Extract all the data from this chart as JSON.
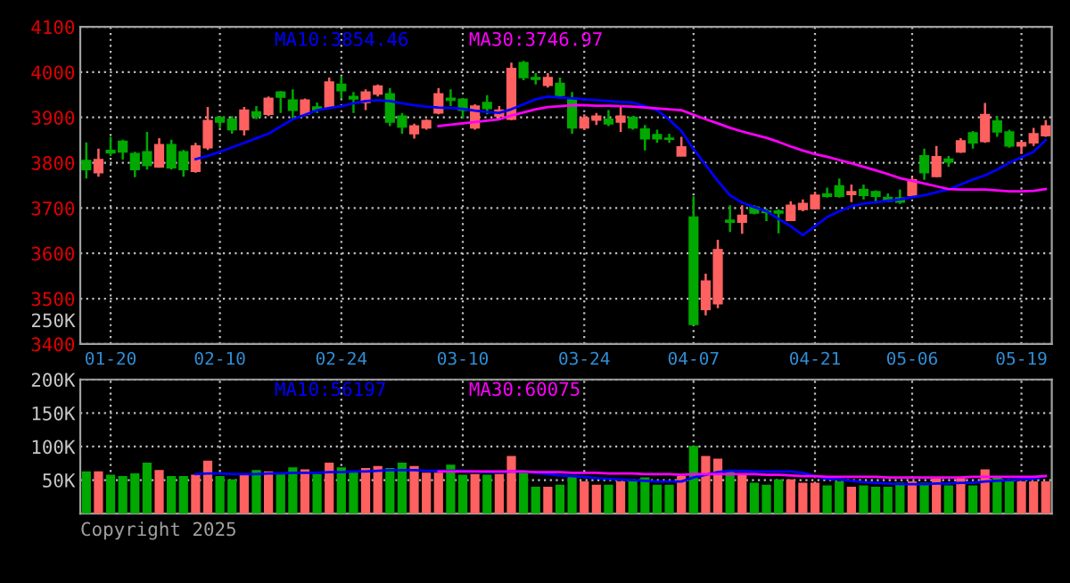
{
  "chart_data": [
    {
      "type": "candlestick",
      "categories": [
        null,
        null,
        "01-20",
        null,
        null,
        null,
        null,
        null,
        null,
        null,
        null,
        "02-10",
        null,
        null,
        null,
        null,
        null,
        null,
        null,
        null,
        null,
        "02-24",
        null,
        null,
        null,
        null,
        null,
        null,
        null,
        null,
        null,
        "03-10",
        null,
        null,
        null,
        null,
        null,
        null,
        null,
        null,
        null,
        "03-24",
        null,
        null,
        null,
        null,
        null,
        null,
        null,
        null,
        "04-07",
        null,
        null,
        null,
        null,
        null,
        null,
        null,
        null,
        null,
        "04-21",
        null,
        null,
        null,
        null,
        null,
        null,
        null,
        "05-06",
        null,
        null,
        null,
        null,
        null,
        null,
        null,
        null,
        "05-19",
        null,
        null
      ],
      "ohlc": [
        [
          3805,
          3845,
          3765,
          3785
        ],
        [
          3778,
          3831,
          3769,
          3807
        ],
        [
          3827,
          3857,
          3815,
          3822
        ],
        [
          3847,
          3851,
          3807,
          3824
        ],
        [
          3820,
          3824,
          3768,
          3785
        ],
        [
          3824,
          3868,
          3785,
          3794
        ],
        [
          3791,
          3854,
          3789,
          3840
        ],
        [
          3840,
          3851,
          3785,
          3789
        ],
        [
          3824,
          3828,
          3769,
          3785
        ],
        [
          3781,
          3844,
          3778,
          3837
        ],
        [
          3833,
          3923,
          3828,
          3893
        ],
        [
          3900,
          3903,
          3877,
          3890
        ],
        [
          3896,
          3903,
          3864,
          3873
        ],
        [
          3873,
          3923,
          3860,
          3916
        ],
        [
          3912,
          3925,
          3896,
          3902
        ],
        [
          3907,
          3946,
          3903,
          3942
        ],
        [
          3956,
          3958,
          3910,
          3945
        ],
        [
          3938,
          3962,
          3896,
          3916
        ],
        [
          3907,
          3942,
          3903,
          3938
        ],
        [
          3923,
          3933,
          3910,
          3917
        ],
        [
          3923,
          3988,
          3919,
          3978
        ],
        [
          3973,
          3991,
          3942,
          3959
        ],
        [
          3946,
          3956,
          3910,
          3941
        ],
        [
          3933,
          3962,
          3916,
          3956
        ],
        [
          3952,
          3973,
          3946,
          3969
        ],
        [
          3952,
          3965,
          3881,
          3890
        ],
        [
          3903,
          3910,
          3864,
          3879
        ],
        [
          3864,
          3886,
          3853,
          3881
        ],
        [
          3877,
          3896,
          3873,
          3893
        ],
        [
          3910,
          3965,
          3907,
          3952
        ],
        [
          3942,
          3962,
          3925,
          3938
        ],
        [
          3940,
          3942,
          3899,
          3916
        ],
        [
          3877,
          3929,
          3873,
          3925
        ],
        [
          3933,
          3949,
          3907,
          3920
        ],
        [
          3903,
          3925,
          3896,
          3916
        ],
        [
          3896,
          4021,
          3894,
          4008
        ],
        [
          4021,
          4025,
          3982,
          3988
        ],
        [
          3988,
          3998,
          3973,
          3984
        ],
        [
          3971,
          3998,
          3966,
          3988
        ],
        [
          3975,
          3988,
          3942,
          3949
        ],
        [
          3942,
          3956,
          3864,
          3877
        ],
        [
          3877,
          3907,
          3873,
          3899
        ],
        [
          3894,
          3910,
          3883,
          3903
        ],
        [
          3896,
          3916,
          3881,
          3886
        ],
        [
          3890,
          3923,
          3868,
          3903
        ],
        [
          3900,
          3903,
          3873,
          3877
        ],
        [
          3874,
          3883,
          3827,
          3853
        ],
        [
          3862,
          3873,
          3844,
          3853
        ],
        [
          3854,
          3864,
          3844,
          3852
        ],
        [
          3815,
          3857,
          3815,
          3835
        ],
        [
          3680,
          3726,
          3443,
          3443
        ],
        [
          3476,
          3555,
          3463,
          3539
        ],
        [
          3489,
          3630,
          3479,
          3608
        ],
        [
          3673,
          3706,
          3647,
          3669
        ],
        [
          3669,
          3706,
          3643,
          3684
        ],
        [
          3702,
          3706,
          3686,
          3689
        ],
        [
          3693,
          3699,
          3671,
          3690
        ],
        [
          3693,
          3697,
          3644,
          3689
        ],
        [
          3673,
          3715,
          3671,
          3706
        ],
        [
          3697,
          3719,
          3693,
          3710
        ],
        [
          3699,
          3736,
          3697,
          3728
        ],
        [
          3731,
          3745,
          3723,
          3726
        ],
        [
          3749,
          3765,
          3723,
          3726
        ],
        [
          3730,
          3752,
          3713,
          3736
        ],
        [
          3741,
          3752,
          3719,
          3728
        ],
        [
          3736,
          3739,
          3710,
          3726
        ],
        [
          3723,
          3732,
          3713,
          3715
        ],
        [
          3722,
          3741,
          3709,
          3713
        ],
        [
          3728,
          3768,
          3726,
          3762
        ],
        [
          3815,
          3831,
          3762,
          3778
        ],
        [
          3770,
          3837,
          3768,
          3813
        ],
        [
          3808,
          3815,
          3791,
          3802
        ],
        [
          3824,
          3854,
          3822,
          3848
        ],
        [
          3866,
          3870,
          3831,
          3844
        ],
        [
          3847,
          3932,
          3844,
          3906
        ],
        [
          3892,
          3903,
          3857,
          3868
        ],
        [
          3868,
          3873,
          3833,
          3837
        ],
        [
          3837,
          3847,
          3820,
          3844
        ],
        [
          3844,
          3877,
          3837,
          3864
        ],
        [
          3860,
          3894,
          3857,
          3881
        ]
      ],
      "colors": [
        "#00a800",
        "#ff6060",
        "#00a800",
        "#00a800",
        "#00a800",
        "#00a800",
        "#ff6060",
        "#00a800",
        "#00a800",
        "#ff6060",
        "#ff6060",
        "#00a800",
        "#00a800",
        "#ff6060",
        "#00a800",
        "#ff6060",
        "#00a800",
        "#00a800",
        "#ff6060",
        "#00a800",
        "#ff6060",
        "#00a800",
        "#00a800",
        "#ff6060",
        "#ff6060",
        "#00a800",
        "#00a800",
        "#ff6060",
        "#ff6060",
        "#ff6060",
        "#00a800",
        "#00a800",
        "#ff6060",
        "#00a800",
        "#ff6060",
        "#ff6060",
        "#00a800",
        "#00a800",
        "#ff6060",
        "#00a800",
        "#00a800",
        "#ff6060",
        "#ff6060",
        "#00a800",
        "#ff6060",
        "#00a800",
        "#00a800",
        "#00a800",
        "#00a800",
        "#ff6060",
        "#00a800",
        "#ff6060",
        "#ff6060",
        "#00a800",
        "#ff6060",
        "#00a800",
        "#00a800",
        "#00a800",
        "#ff6060",
        "#ff6060",
        "#ff6060",
        "#00a800",
        "#00a800",
        "#ff6060",
        "#00a800",
        "#00a800",
        "#00a800",
        "#00a800",
        "#ff6060",
        "#00a800",
        "#ff6060",
        "#00a800",
        "#ff6060",
        "#00a800",
        "#ff6060",
        "#00a800",
        "#00a800",
        "#ff6060",
        "#ff6060",
        "#ff6060"
      ],
      "series": [
        {
          "type": "line",
          "name": "MA10:3854.46",
          "color": "#0000ff",
          "values": [
            null,
            null,
            null,
            null,
            null,
            null,
            null,
            null,
            null,
            3808,
            3815,
            3824,
            3834,
            3844,
            3854,
            3864,
            3880,
            3896,
            3906,
            3916,
            3921,
            3925,
            3931,
            3936,
            3938,
            3936,
            3931,
            3927,
            3924,
            3922,
            3921,
            3919,
            3915,
            3912,
            3910,
            3918,
            3929,
            3940,
            3946,
            3944,
            3942,
            3940,
            3938,
            3936,
            3934,
            3933,
            3925,
            3916,
            3895,
            3870,
            3830,
            3795,
            3760,
            3728,
            3712,
            3702,
            3693,
            3676,
            3660,
            3640,
            3660,
            3680,
            3693,
            3704,
            3710,
            3713,
            3716,
            3719,
            3724,
            3728,
            3735,
            3741,
            3752,
            3763,
            3772,
            3785,
            3800,
            3812,
            3824,
            3850
          ]
        },
        {
          "type": "line",
          "name": "MA30:3746.97",
          "color": "#ff00ff",
          "values": [
            null,
            null,
            null,
            null,
            null,
            null,
            null,
            null,
            null,
            null,
            null,
            null,
            null,
            null,
            null,
            null,
            null,
            null,
            null,
            null,
            null,
            null,
            null,
            null,
            null,
            null,
            null,
            null,
            null,
            3881,
            3884,
            3887,
            3890,
            3893,
            3896,
            3904,
            3911,
            3918,
            3923,
            3925,
            3927,
            3927,
            3926,
            3926,
            3925,
            3924,
            3922,
            3920,
            3918,
            3916,
            3906,
            3896,
            3887,
            3877,
            3869,
            3862,
            3855,
            3846,
            3836,
            3827,
            3819,
            3813,
            3806,
            3799,
            3791,
            3783,
            3775,
            3766,
            3760,
            3754,
            3748,
            3742,
            3741,
            3741,
            3741,
            3739,
            3737,
            3737,
            3738,
            3742
          ]
        }
      ],
      "ylim": [
        3400,
        4100
      ],
      "yticks": [
        3400,
        3500,
        3600,
        3700,
        3800,
        3900,
        4000,
        4100
      ],
      "grid": true,
      "legend": "top"
    },
    {
      "type": "bar",
      "categories": [
        null,
        null,
        null,
        null,
        null,
        null,
        null,
        null,
        null,
        null,
        null,
        null,
        null,
        null,
        null,
        null,
        null,
        null,
        null,
        null,
        null,
        null,
        null,
        null,
        null,
        null,
        null,
        null,
        null,
        null,
        null,
        null,
        null,
        null,
        null,
        null,
        null,
        null,
        null,
        null,
        null,
        null,
        null,
        null,
        null,
        null,
        null,
        null,
        null,
        null,
        null,
        null,
        null,
        null,
        null,
        null,
        null,
        null,
        null,
        null,
        null,
        null,
        null,
        null,
        null,
        null,
        null,
        null,
        null,
        null,
        null,
        null,
        null,
        null,
        null,
        null,
        null,
        null,
        null,
        null
      ],
      "series": [
        {
          "type": "bar",
          "colors": [
            "#00a800",
            "#ff6060",
            "#00a800",
            "#00a800",
            "#00a800",
            "#00a800",
            "#ff6060",
            "#00a800",
            "#00a800",
            "#ff6060",
            "#ff6060",
            "#00a800",
            "#00a800",
            "#ff6060",
            "#00a800",
            "#ff6060",
            "#00a800",
            "#00a800",
            "#ff6060",
            "#00a800",
            "#ff6060",
            "#00a800",
            "#00a800",
            "#ff6060",
            "#ff6060",
            "#00a800",
            "#00a800",
            "#ff6060",
            "#ff6060",
            "#ff6060",
            "#00a800",
            "#00a800",
            "#ff6060",
            "#00a800",
            "#ff6060",
            "#ff6060",
            "#00a800",
            "#00a800",
            "#ff6060",
            "#00a800",
            "#00a800",
            "#ff6060",
            "#ff6060",
            "#00a800",
            "#ff6060",
            "#00a800",
            "#00a800",
            "#00a800",
            "#00a800",
            "#ff6060",
            "#00a800",
            "#ff6060",
            "#ff6060",
            "#00a800",
            "#ff6060",
            "#00a800",
            "#00a800",
            "#00a800",
            "#ff6060",
            "#ff6060",
            "#ff6060",
            "#00a800",
            "#00a800",
            "#ff6060",
            "#00a800",
            "#00a800",
            "#00a800",
            "#00a800",
            "#ff6060",
            "#00a800",
            "#ff6060",
            "#00a800",
            "#ff6060",
            "#00a800",
            "#ff6060",
            "#00a800",
            "#00a800",
            "#ff6060",
            "#ff6060",
            "#ff6060"
          ],
          "values": [
            63000,
            63000,
            58000,
            56000,
            60000,
            76000,
            65000,
            56000,
            56000,
            58000,
            79000,
            56000,
            51000,
            58000,
            65000,
            63000,
            61000,
            69000,
            66000,
            59000,
            76000,
            69000,
            63000,
            68000,
            71000,
            68000,
            76000,
            71000,
            61000,
            61000,
            73000,
            58000,
            59000,
            58000,
            59000,
            86000,
            61000,
            40000,
            40000,
            43000,
            56000,
            48000,
            43000,
            43000,
            48000,
            48000,
            54000,
            43000,
            43000,
            56000,
            101000,
            86000,
            82000,
            65000,
            59000,
            46000,
            43000,
            51000,
            51000,
            46000,
            46000,
            42000,
            48000,
            40000,
            42000,
            40000,
            40000,
            46000,
            48000,
            46000,
            54000,
            42000,
            54000,
            42000,
            66000,
            54000,
            50000,
            48000,
            48000,
            48000
          ]
        },
        {
          "type": "line",
          "name": "MA10:56197",
          "color": "#0000ff",
          "values": [
            null,
            null,
            null,
            null,
            null,
            null,
            null,
            null,
            null,
            59000,
            60000,
            60000,
            59000,
            59000,
            59000,
            60000,
            60000,
            61000,
            61000,
            61000,
            62000,
            62000,
            63000,
            63000,
            64000,
            65000,
            65000,
            65000,
            64000,
            64000,
            64000,
            64000,
            63000,
            62000,
            62000,
            63000,
            63000,
            61000,
            59000,
            57000,
            56000,
            55000,
            53000,
            52000,
            51000,
            50000,
            49000,
            48000,
            48000,
            48000,
            54000,
            58000,
            62000,
            64000,
            64000,
            63000,
            63000,
            63000,
            63000,
            61000,
            56000,
            52000,
            51000,
            49000,
            47000,
            46000,
            45000,
            44000,
            44000,
            44000,
            45000,
            45000,
            46000,
            46000,
            48000,
            49000,
            50000,
            51000,
            52000,
            56000
          ]
        },
        {
          "type": "line",
          "name": "MA30:60075",
          "color": "#ff00ff",
          "values": [
            null,
            null,
            null,
            null,
            null,
            null,
            null,
            null,
            null,
            null,
            null,
            null,
            null,
            null,
            null,
            null,
            null,
            null,
            null,
            null,
            null,
            null,
            null,
            null,
            null,
            null,
            null,
            null,
            null,
            63000,
            63000,
            63000,
            63000,
            63000,
            63000,
            63000,
            63000,
            62000,
            62000,
            62000,
            61000,
            61000,
            61000,
            60000,
            60000,
            60000,
            59000,
            59000,
            59000,
            58000,
            59000,
            59000,
            59000,
            59000,
            59000,
            59000,
            58000,
            58000,
            57000,
            56000,
            56000,
            55000,
            55000,
            55000,
            55000,
            55000,
            54000,
            54000,
            54000,
            54000,
            54000,
            54000,
            54000,
            55000,
            55000,
            55000,
            55000,
            55000,
            55000,
            56000
          ]
        }
      ],
      "ylim": [
        0,
        200000
      ],
      "yticks": [
        {
          "value": 0,
          "label": null
        },
        {
          "value": 50000,
          "label": "50K"
        },
        {
          "value": 100000,
          "label": "100K"
        },
        {
          "value": 150000,
          "label": "150K"
        },
        {
          "value": 200000,
          "label": "200K"
        }
      ],
      "grid": true,
      "legend": "top",
      "tick_labels": "y",
      "annotations": [
        "250K",
        "Copyright 2025"
      ]
    }
  ]
}
